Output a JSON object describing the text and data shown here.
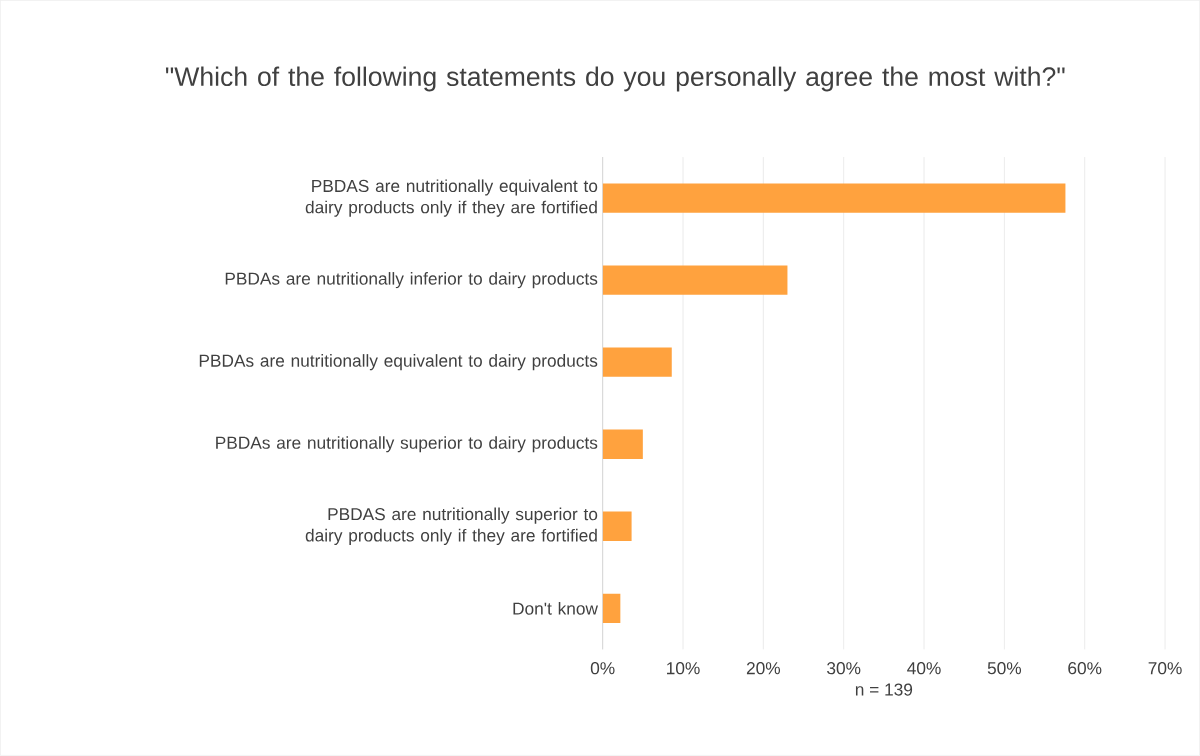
{
  "chart_data": {
    "type": "bar",
    "orientation": "horizontal",
    "title": "\"Which of the following statements do you personally agree the most with?\"",
    "xlabel": "n = 139",
    "categories": [
      "PBDAS are nutritionally equivalent to dairy products only if they are fortified",
      "PBDAs are nutritionally inferior to dairy products",
      "PBDAs are nutritionally equivalent to dairy products",
      "PBDAs are nutritionally superior to dairy products",
      "PBDAS are nutritionally superior to dairy products only if they are fortified",
      "Don't know"
    ],
    "values": [
      57.6,
      23.0,
      8.6,
      5.0,
      3.6,
      2.2
    ],
    "color": "#ffa23e",
    "xlim": [
      0,
      70
    ],
    "xticks": [
      {
        "value": 0,
        "label": "0%"
      },
      {
        "value": 10,
        "label": "10%"
      },
      {
        "value": 20,
        "label": "20%"
      },
      {
        "value": 30,
        "label": "30%"
      },
      {
        "value": 40,
        "label": "40%"
      },
      {
        "value": 50,
        "label": "50%"
      },
      {
        "value": 60,
        "label": "60%"
      },
      {
        "value": 70,
        "label": "70%"
      }
    ],
    "grid": "x"
  }
}
